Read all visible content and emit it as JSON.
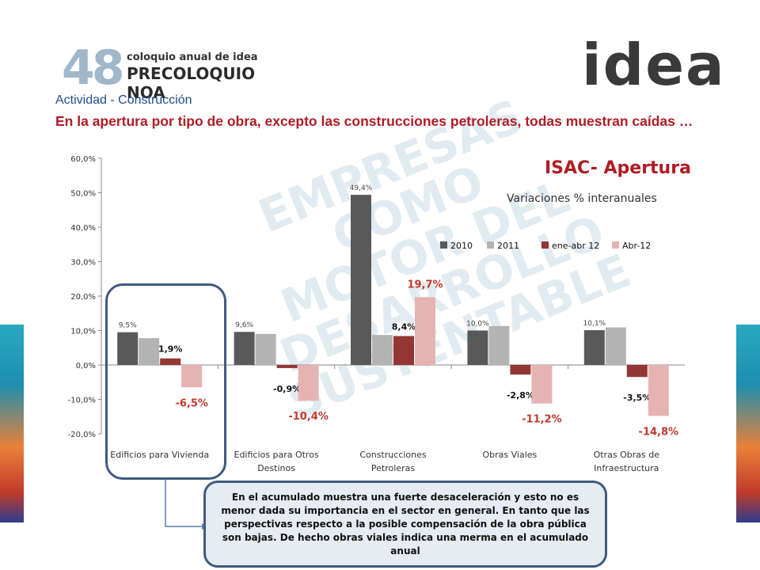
{
  "logo": {
    "number": "48",
    "line1": "coloquio anual de idea",
    "line2": "PRECOLOQUIO NOA",
    "brand": "idea"
  },
  "header": {
    "section_title": "Actividad - Construcción",
    "headline": "En la apertura por tipo de obra, excepto las construcciones petroleras, todas muestran caídas …"
  },
  "watermark": {
    "text": "EMPRESAS COMO MOTOR DEL DESARROLLO SUSTENTABLE"
  },
  "callout": {
    "text": "En el acumulado muestra una fuerte desaceleración y esto no es menor dada su importancia en el sector en general. En tanto que las perspectivas respecto a la posible compensación de la obra pública son bajas. De hecho obras viales indica una merma en el acumulado anual"
  },
  "colors": {
    "headline": "#b01c25",
    "section_title": "#1f4e8c",
    "frame": "#3f5a7f"
  },
  "chart_data": {
    "type": "bar",
    "title": "ISAC- Apertura",
    "subtitle": "Variaciones % interanuales",
    "categories": [
      "Edificios para Vivienda",
      "Edificios para Otros Destinos",
      "Construcciones Petroleras",
      "Obras Viales",
      "Otras Obras de Infraestructura"
    ],
    "category_lines": [
      [
        "Edificios para Vivienda"
      ],
      [
        "Edificios para Otros",
        "Destinos"
      ],
      [
        "Construcciones",
        "Petroleras"
      ],
      [
        "Obras Viales"
      ],
      [
        "Otras Obras de",
        "Infraestructura"
      ]
    ],
    "series": [
      {
        "name": "2010",
        "color": "#595959",
        "values": [
          9.5,
          9.6,
          49.4,
          10.0,
          10.1
        ],
        "labels": [
          "9,5%",
          "9,6%",
          "49,4%",
          "10,0%",
          "10,1%"
        ]
      },
      {
        "name": "2011",
        "color": "#b3b3b3",
        "values": [
          7.8,
          9.0,
          8.7,
          11.3,
          10.9
        ],
        "labels": [
          null,
          null,
          null,
          null,
          null
        ]
      },
      {
        "name": "ene-abr 12",
        "color": "#943634",
        "values": [
          1.9,
          -0.9,
          8.4,
          -2.8,
          -3.5
        ],
        "labels": [
          "1,9%",
          "-0,9%",
          "8,4%",
          "-2,8%",
          "-3,5%"
        ]
      },
      {
        "name": "Abr-12",
        "color": "#e6b3b3",
        "values": [
          -6.5,
          -10.4,
          19.7,
          -11.2,
          -14.8
        ],
        "labels": [
          "-6,5%",
          "-10,4%",
          "19,7%",
          "-11,2%",
          "-14,8%"
        ]
      }
    ],
    "ylim": [
      -20,
      60
    ],
    "yticks": [
      -20,
      -10,
      0,
      10,
      20,
      30,
      40,
      50,
      60
    ],
    "ytick_labels": [
      "-20,0%",
      "-10,0%",
      "0,0%",
      "10,0%",
      "20,0%",
      "30,0%",
      "40,0%",
      "50,0%",
      "60,0%"
    ],
    "legend_position": "top-right",
    "grid": false
  }
}
